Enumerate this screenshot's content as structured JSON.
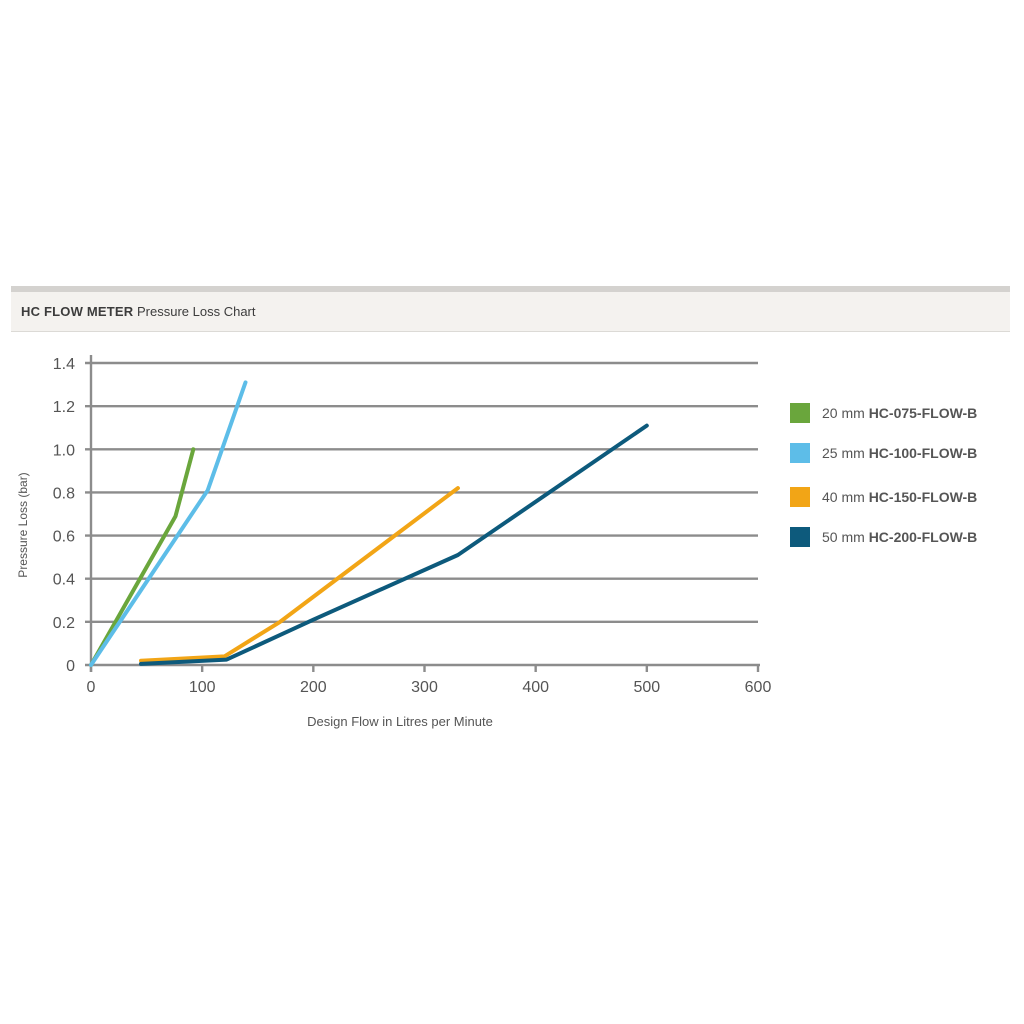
{
  "header": {
    "title_bold": "HC FLOW METER",
    "title_rest": "Pressure Loss Chart"
  },
  "colors": {
    "grid": "#8c8c8c",
    "axis": "#8c8c8c",
    "text": "#555555",
    "header_bg": "#f4f2ef",
    "header_border": "#d4d2cf"
  },
  "chart_data": {
    "type": "line",
    "title": "HC FLOW METER Pressure Loss Chart",
    "xlabel": "Design Flow in Litres per Minute",
    "ylabel": "Pressure Loss (bar)",
    "xlim": [
      0,
      600
    ],
    "ylim": [
      0,
      1.4
    ],
    "xticks": [
      0,
      100,
      200,
      300,
      400,
      500,
      600
    ],
    "xtick_labels": [
      "0",
      "100",
      "200",
      "300",
      "400",
      "500",
      "600"
    ],
    "yticks": [
      0,
      0.2,
      0.4,
      0.6,
      0.8,
      1.0,
      1.2,
      1.4
    ],
    "ytick_labels": [
      "0",
      "0.2",
      "0.4",
      "0.6",
      "0.8",
      "1.0",
      "1.2",
      "1.4"
    ],
    "grid": "horizontal",
    "legend_position": "right",
    "series": [
      {
        "size": "20 mm",
        "model": "HC-075-FLOW-B",
        "color": "#6aa63c",
        "points": [
          [
            0,
            0
          ],
          [
            76,
            0.69
          ],
          [
            92,
            1.0
          ]
        ]
      },
      {
        "size": "25 mm",
        "model": "HC-100-FLOW-B",
        "color": "#5dbde8",
        "points": [
          [
            0,
            0
          ],
          [
            105,
            0.81
          ],
          [
            139,
            1.31
          ]
        ]
      },
      {
        "size": "40 mm",
        "model": "HC-150-FLOW-B",
        "color": "#f2a516",
        "points": [
          [
            45,
            0.02
          ],
          [
            120,
            0.04
          ],
          [
            170,
            0.2
          ],
          [
            330,
            0.82
          ]
        ]
      },
      {
        "size": "50 mm",
        "model": "HC-200-FLOW-B",
        "color": "#0d5a7c",
        "points": [
          [
            45,
            0.005
          ],
          [
            122,
            0.025
          ],
          [
            200,
            0.21
          ],
          [
            330,
            0.51
          ],
          [
            500,
            1.11
          ]
        ]
      }
    ]
  }
}
